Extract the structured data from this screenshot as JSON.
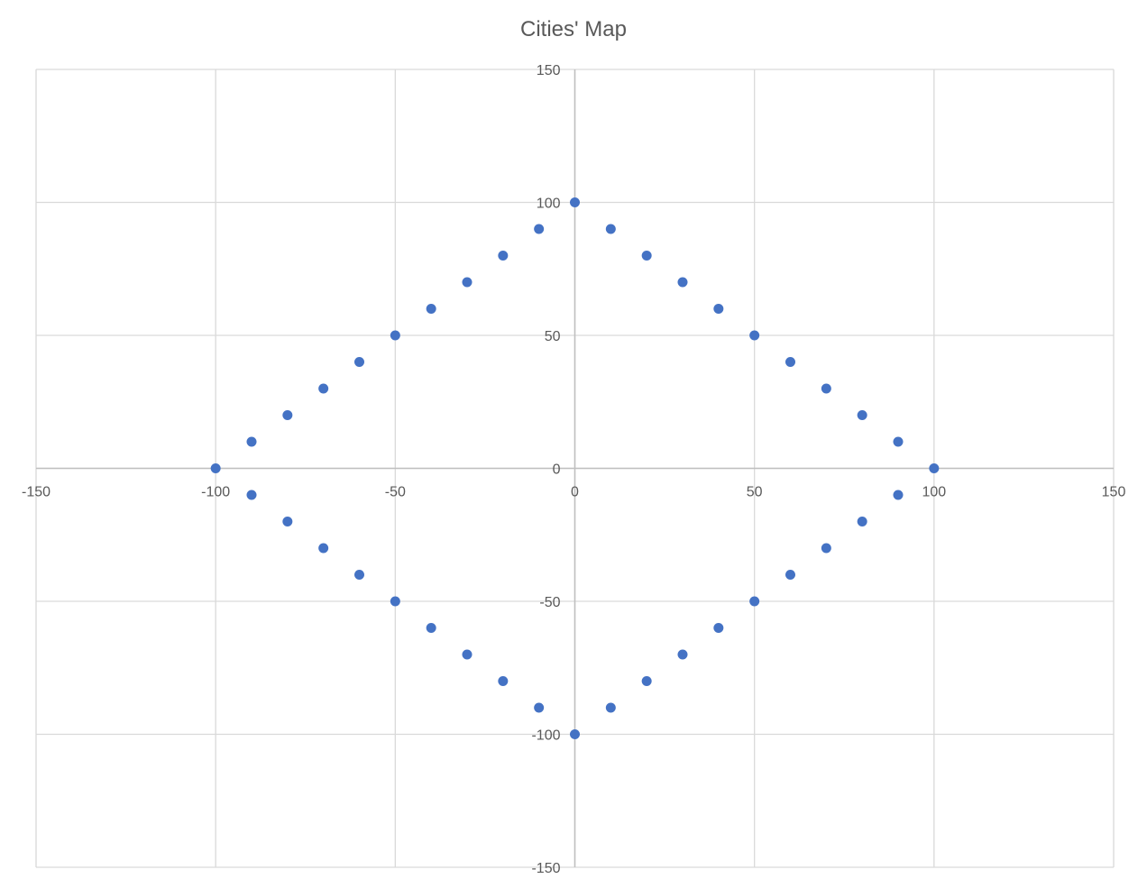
{
  "chart_data": {
    "type": "scatter",
    "title": "Cities' Map",
    "xlabel": "",
    "ylabel": "",
    "xlim": [
      -150,
      150
    ],
    "ylim": [
      -150,
      150
    ],
    "x_ticks": [
      -150,
      -100,
      -50,
      0,
      50,
      100,
      150
    ],
    "y_ticks": [
      -150,
      -100,
      -50,
      0,
      50,
      100,
      150
    ],
    "grid": true,
    "legend": "none",
    "marker_color": "#4472C4",
    "series": [
      {
        "points": [
          [
            0,
            100
          ],
          [
            10,
            90
          ],
          [
            20,
            80
          ],
          [
            30,
            70
          ],
          [
            40,
            60
          ],
          [
            50,
            50
          ],
          [
            60,
            40
          ],
          [
            70,
            30
          ],
          [
            80,
            20
          ],
          [
            90,
            10
          ],
          [
            100,
            0
          ],
          [
            90,
            -10
          ],
          [
            80,
            -20
          ],
          [
            70,
            -30
          ],
          [
            60,
            -40
          ],
          [
            50,
            -50
          ],
          [
            40,
            -60
          ],
          [
            30,
            -70
          ],
          [
            20,
            -80
          ],
          [
            10,
            -90
          ],
          [
            0,
            -100
          ],
          [
            -10,
            -90
          ],
          [
            -20,
            -80
          ],
          [
            -30,
            -70
          ],
          [
            -40,
            -60
          ],
          [
            -50,
            -50
          ],
          [
            -60,
            -40
          ],
          [
            -70,
            -30
          ],
          [
            -80,
            -20
          ],
          [
            -90,
            -10
          ],
          [
            -100,
            0
          ],
          [
            -90,
            10
          ],
          [
            -80,
            20
          ],
          [
            -70,
            30
          ],
          [
            -60,
            40
          ],
          [
            -50,
            50
          ],
          [
            -40,
            60
          ],
          [
            -30,
            70
          ],
          [
            -20,
            80
          ],
          [
            -10,
            90
          ]
        ]
      }
    ]
  }
}
